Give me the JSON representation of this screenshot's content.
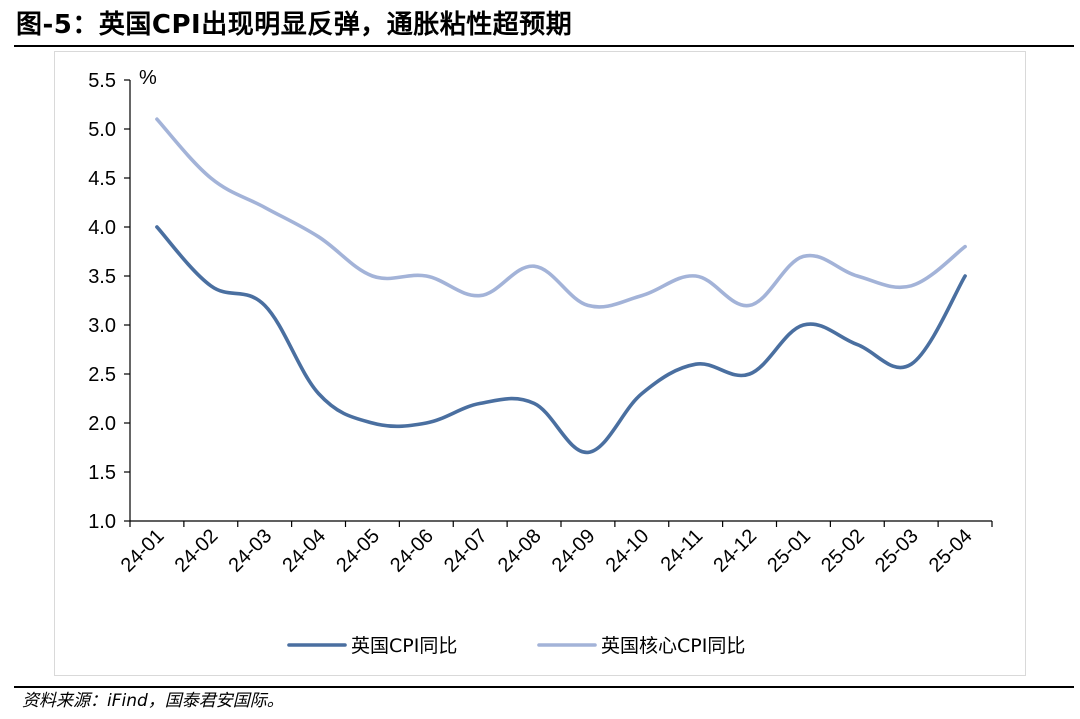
{
  "figure": {
    "title": "图-5：英国CPI出现明显反弹，通胀粘性超预期",
    "source": "资料来源：iFind，国泰君安国际。"
  },
  "chart_data": {
    "type": "line",
    "title": "",
    "xlabel": "",
    "ylabel": "%",
    "categories": [
      "24-01",
      "24-02",
      "24-03",
      "24-04",
      "24-05",
      "24-06",
      "24-07",
      "24-08",
      "24-09",
      "24-10",
      "24-11",
      "24-12",
      "25-01",
      "25-02",
      "25-03",
      "25-04"
    ],
    "yticks": [
      "1.0",
      "1.5",
      "2.0",
      "2.5",
      "3.0",
      "3.5",
      "4.0",
      "4.5",
      "5.0",
      "5.5"
    ],
    "ylim": [
      1.0,
      5.5
    ],
    "grid": false,
    "legend_position": "bottom",
    "series": [
      {
        "name": "英国CPI同比",
        "color": "#4a6fa0",
        "values": [
          4.0,
          3.4,
          3.2,
          2.3,
          2.0,
          2.0,
          2.2,
          2.2,
          1.7,
          2.3,
          2.6,
          2.5,
          3.0,
          2.8,
          2.6,
          3.5
        ]
      },
      {
        "name": "英国核心CPI同比",
        "color": "#a3b3d8",
        "values": [
          5.1,
          4.5,
          4.2,
          3.9,
          3.5,
          3.5,
          3.3,
          3.6,
          3.2,
          3.3,
          3.5,
          3.2,
          3.7,
          3.5,
          3.4,
          3.8
        ]
      }
    ]
  }
}
